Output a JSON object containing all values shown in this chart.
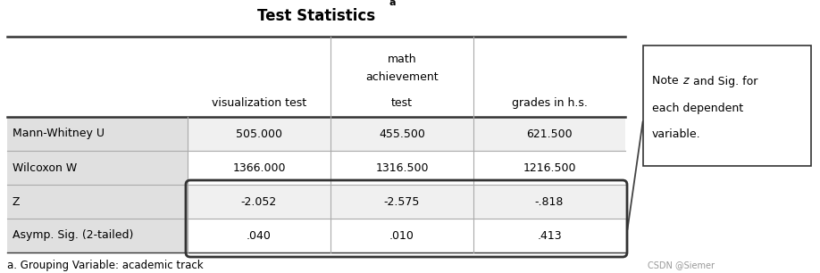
{
  "title": "Test Statistics",
  "title_superscript": "a",
  "col_headers_math1": "math",
  "col_headers_math2": "achievement",
  "col_headers_line3": [
    "visualization test",
    "test",
    "grades in h.s."
  ],
  "row_labels": [
    "Mann-Whitney U",
    "Wilcoxon W",
    "Z",
    "Asymp. Sig. (2-tailed)"
  ],
  "data": [
    [
      "505.000",
      "455.500",
      "621.500"
    ],
    [
      "1366.000",
      "1316.500",
      "1216.500"
    ],
    [
      "-2.052",
      "-2.575",
      "-.818"
    ],
    [
      ".040",
      ".010",
      ".413"
    ]
  ],
  "footnote": "a. Grouping Variable: academic track",
  "note_box_text_pre": "Note ",
  "note_box_text_italic": "z",
  "note_box_text_post": " and Sig. for\neach dependent\nvariable.",
  "watermark": "CSDN @Siemer",
  "bg_color_label_col": "#e0e0e0",
  "bg_color_header": "#ffffff",
  "bg_color_rows_odd": "#f0f0f0",
  "bg_color_rows_even": "#ffffff",
  "line_color_thick": "#333333",
  "line_color_thin": "#aaaaaa",
  "highlight_color": "#333333",
  "note_box_color": "#333333"
}
